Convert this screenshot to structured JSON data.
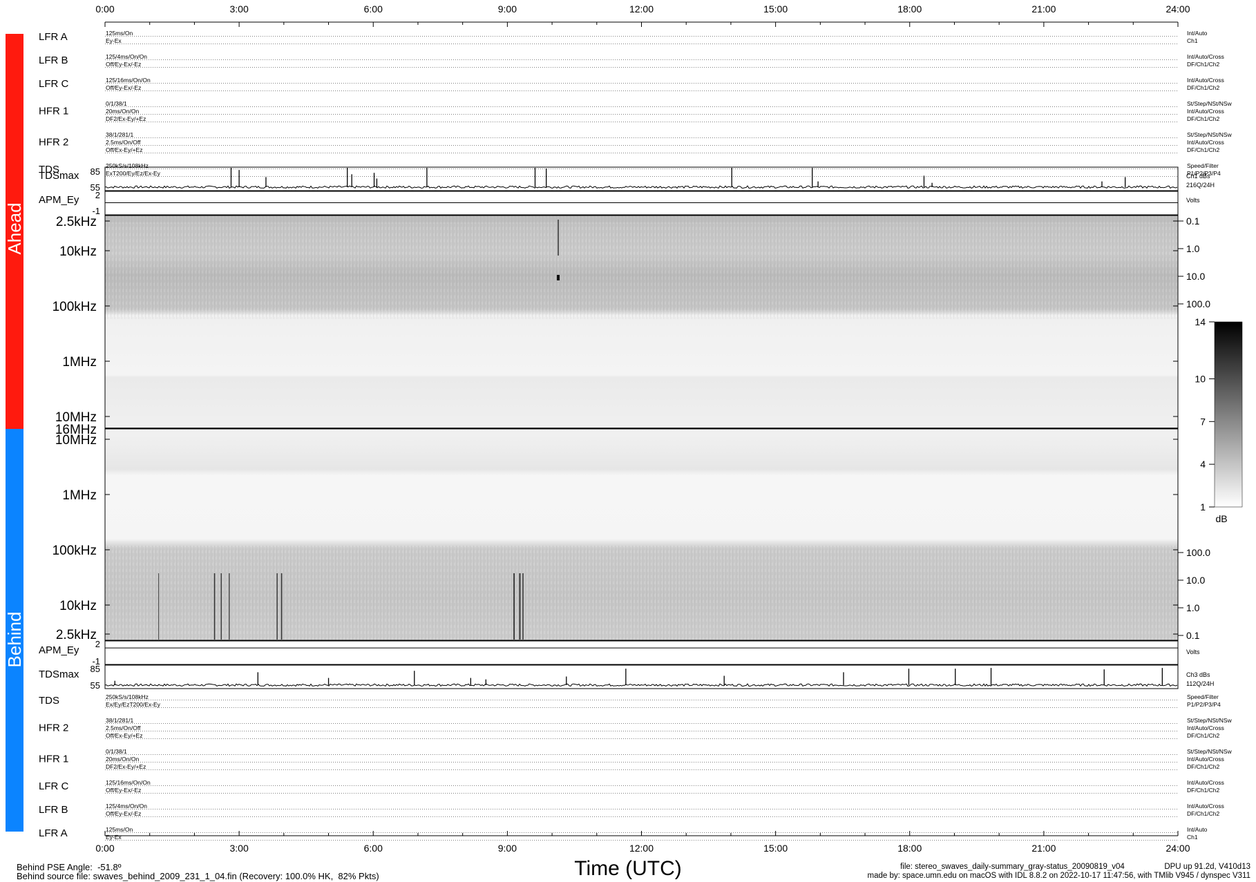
{
  "chart_data": {
    "type": "heatmap",
    "x_ticks": [
      "0:00",
      "3:00",
      "6:00",
      "9:00",
      "12:00",
      "15:00",
      "18:00",
      "21:00",
      "24:00"
    ],
    "xlabel": "Time (UTC)",
    "side_labels": {
      "ahead": "Ahead",
      "behind": "Behind",
      "ahead_color": "#ff1a0e",
      "behind_color": "#0b84ff"
    },
    "ahead_status": [
      {
        "name": "LFR A",
        "left": [
          "125ms/On",
          "Ey-Ex"
        ],
        "right": [
          "Int/Auto",
          "Ch1"
        ]
      },
      {
        "name": "LFR B",
        "left": [
          "125/4ms/On/On",
          "Off/Ey-Ex/-Ez"
        ],
        "right": [
          "Int/Auto/Cross",
          "DF/Ch1/Ch2"
        ]
      },
      {
        "name": "LFR C",
        "left": [
          "125/16ms/On/On",
          "Off/Ey-Ex/-Ez"
        ],
        "right": [
          "Int/Auto/Cross",
          "DF/Ch1/Ch2"
        ]
      },
      {
        "name": "HFR 1",
        "left": [
          "0/1/38/1",
          "20ms/On/On",
          "DF2/Ex-Ey/+Ez"
        ],
        "right": [
          "St/Step/NSt/NSw",
          "Int/Auto/Cross",
          "DF/Ch1/Ch2"
        ]
      },
      {
        "name": "HFR 2",
        "left": [
          "38/1/281/1",
          "2.5ms/On/Off",
          "Off/Ex-Ey/+Ez"
        ],
        "right": [
          "St/Step/NSt/NSw",
          "Int/Auto/Cross",
          "DF/Ch1/Ch2"
        ]
      },
      {
        "name": "TDS",
        "left": [
          "250kS/s/108kHz",
          "ExT200/Ey/Ez/Ex-Ey"
        ],
        "right": [
          "Speed/Filter",
          "P1/P2/P3/P4"
        ]
      }
    ],
    "behind_status": [
      {
        "name": "TDS",
        "left": [
          "250kS/s/108kHz",
          "Ex/Ey/EzT200/Ex-Ey"
        ],
        "right": [
          "Speed/Filter",
          "P1/P2/P3/P4"
        ]
      },
      {
        "name": "HFR 2",
        "left": [
          "38/1/281/1",
          "2.5ms/On/Off",
          "Off/Ex-Ey/+Ez"
        ],
        "right": [
          "St/Step/NSt/NSw",
          "Int/Auto/Cross",
          "DF/Ch1/Ch2"
        ]
      },
      {
        "name": "HFR 1",
        "left": [
          "0/1/38/1",
          "20ms/On/On",
          "DF2/Ex-Ey/+Ez"
        ],
        "right": [
          "St/Step/NSt/NSw",
          "Int/Auto/Cross",
          "DF/Ch1/Ch2"
        ]
      },
      {
        "name": "LFR C",
        "left": [
          "125/16ms/On/On",
          "Off/Ey-Ex/-Ez"
        ],
        "right": [
          "Int/Auto/Cross",
          "DF/Ch1/Ch2"
        ]
      },
      {
        "name": "LFR B",
        "left": [
          "125/4ms/On/On",
          "Off/Ey-Ex/-Ez"
        ],
        "right": [
          "Int/Auto/Cross",
          "DF/Ch1/Ch2"
        ]
      },
      {
        "name": "LFR A",
        "left": [
          "125ms/On",
          "Ey-Ex"
        ],
        "right": [
          "Int/Auto",
          "Ch1"
        ]
      }
    ],
    "ahead_tdsmax": {
      "label": "TDSmax",
      "yticks": [
        "85",
        "55"
      ],
      "ylim": [
        55,
        85
      ],
      "right": [
        "Ch1 dBs",
        "216Q/24H"
      ],
      "spikes": [
        [
          2.82,
          85
        ],
        [
          3.0,
          82
        ],
        [
          3.6,
          72
        ],
        [
          5.42,
          85
        ],
        [
          5.52,
          76
        ],
        [
          6.02,
          78
        ],
        [
          6.08,
          70
        ],
        [
          7.2,
          85
        ],
        [
          9.62,
          85
        ],
        [
          9.87,
          84
        ],
        [
          14.02,
          85
        ],
        [
          15.82,
          85
        ],
        [
          15.95,
          66
        ],
        [
          18.32,
          74
        ],
        [
          18.5,
          64
        ],
        [
          22.3,
          66
        ],
        [
          22.82,
          72
        ]
      ]
    },
    "ahead_apm": {
      "label": "APM_Ey",
      "yticks": [
        "2",
        "-1"
      ],
      "ylim": [
        -1,
        2
      ],
      "value": 0.55,
      "right": [
        "Volts"
      ]
    },
    "behind_apm": {
      "label": "APM_Ey",
      "yticks": [
        "2",
        "-1"
      ],
      "ylim": [
        -1,
        2
      ],
      "value": 1.15,
      "right": [
        "Volts"
      ]
    },
    "behind_tdsmax": {
      "label": "TDSmax",
      "yticks": [
        "85",
        "55"
      ],
      "ylim": [
        55,
        85
      ],
      "right": [
        "Ch3 dBs",
        "112Q/24H"
      ],
      "spikes": [
        [
          0.22,
          64
        ],
        [
          3.42,
          76
        ],
        [
          5.0,
          68
        ],
        [
          6.92,
          78
        ],
        [
          8.18,
          68
        ],
        [
          8.52,
          66
        ],
        [
          10.32,
          70
        ],
        [
          11.65,
          81
        ],
        [
          13.85,
          71
        ],
        [
          16.52,
          76
        ],
        [
          17.98,
          81
        ],
        [
          19.02,
          81
        ],
        [
          19.82,
          82
        ],
        [
          22.35,
          80
        ],
        [
          23.65,
          82
        ]
      ]
    },
    "ahead_spectrogram": {
      "freq_ticks": [
        "2.5kHz",
        "10kHz",
        "100kHz",
        "1MHz",
        "10MHz"
      ],
      "right_ticks": [
        "0.1",
        "1.0",
        "10.0",
        "100.0"
      ]
    },
    "divider_label": "16MHz",
    "behind_spectrogram": {
      "freq_ticks": [
        "10MHz",
        "1MHz",
        "100kHz",
        "10kHz",
        "2.5kHz"
      ],
      "right_ticks": [
        "100.0",
        "10.0",
        "1.0",
        "0.1"
      ]
    },
    "colorbar": {
      "ticks": [
        "14",
        "10",
        "7",
        "4",
        "1"
      ],
      "unit": "dB",
      "range": [
        1,
        14
      ]
    }
  },
  "footer": {
    "left_line1": "Behind PSE Angle:  -51.8º",
    "left_line2": "Behind source file: swaves_behind_2009_231_1_04.fin (Recovery: 100.0% HK,  82% Pkts)",
    "center": "Time (UTC)",
    "right_line1": "file: stereo_swaves_daily-summary_gray-status_20090819_v04                  DPU up 91.2d, V410d13",
    "right_line2": "made by: space.umn.edu on macOS with IDL 8.8.2 on 2022-10-17 11:47:56, with TMlib V945 / dynspec V311"
  }
}
